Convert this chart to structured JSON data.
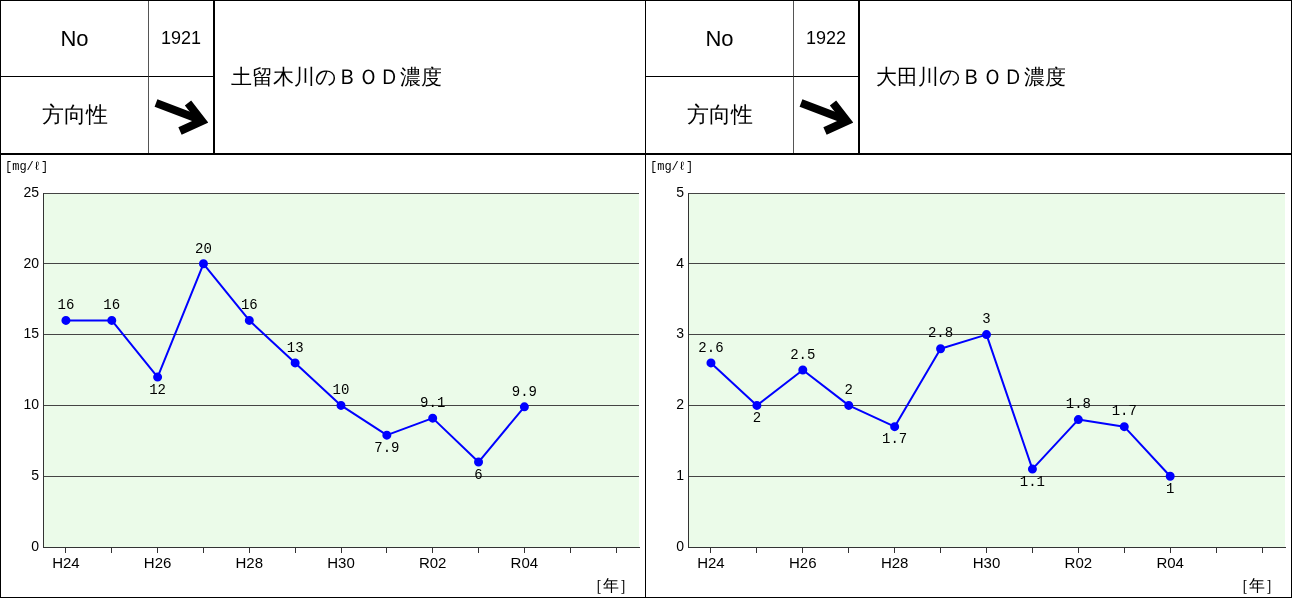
{
  "chart_data": [
    {
      "type": "line",
      "title": "土留木川のＢＯＤ濃度",
      "annotations": [
        "No",
        "1921",
        "方向性"
      ],
      "ylabel": "[mg/ℓ]",
      "xlabel": "［年］",
      "categories": [
        "H24",
        null,
        "H26",
        null,
        "H28",
        null,
        "H30",
        null,
        "R02",
        null,
        "R04",
        null,
        null
      ],
      "values": [
        16,
        16,
        12,
        20,
        16,
        13,
        10,
        7.9,
        9.1,
        6,
        9.9,
        null,
        null
      ],
      "color": "#0000ff",
      "ylim": [
        0,
        25
      ],
      "yticks": [
        0,
        5,
        10,
        15,
        20,
        25
      ],
      "grid": "y",
      "marker": "circle",
      "data_labels": true,
      "legend": false
    },
    {
      "type": "line",
      "title": "大田川のＢＯＤ濃度",
      "annotations": [
        "No",
        "1922",
        "方向性"
      ],
      "ylabel": "[mg/ℓ]",
      "xlabel": "［年］",
      "categories": [
        "H24",
        null,
        "H26",
        null,
        "H28",
        null,
        "H30",
        null,
        "R02",
        null,
        "R04",
        null,
        null
      ],
      "values": [
        2.6,
        2,
        2.5,
        2,
        1.7,
        2.8,
        3,
        1.1,
        1.8,
        1.7,
        1,
        null,
        null
      ],
      "color": "#0000ff",
      "ylim": [
        0,
        5
      ],
      "yticks": [
        0,
        1,
        2,
        3,
        4,
        5
      ],
      "grid": "y",
      "marker": "circle",
      "data_labels": true,
      "legend": false
    }
  ]
}
